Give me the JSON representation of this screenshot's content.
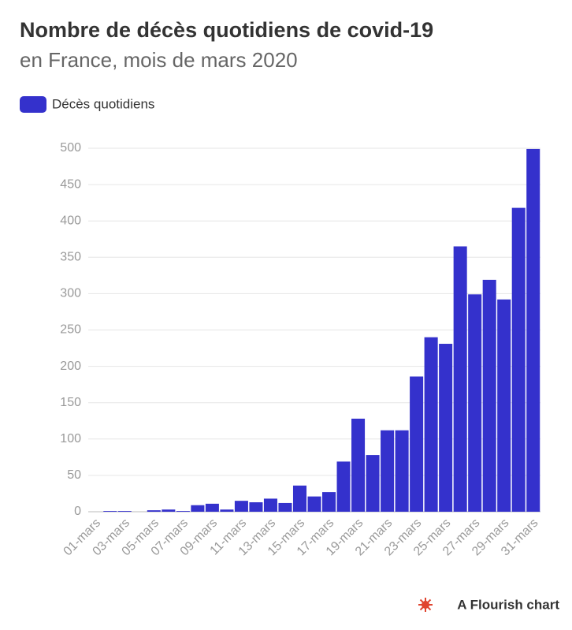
{
  "chart_data": {
    "type": "bar",
    "title": "Nombre de décès quotidiens de covid-19",
    "subtitle": "en France, mois de mars 2020",
    "footer": "A Flourish chart",
    "categories": [
      "01-mars",
      null,
      "03-mars",
      null,
      "05-mars",
      null,
      "07-mars",
      null,
      "09-mars",
      null,
      "11-mars",
      null,
      "13-mars",
      null,
      "15-mars",
      null,
      "17-mars",
      null,
      "19-mars",
      null,
      "21-mars",
      null,
      "23-mars",
      null,
      "25-mars",
      null,
      "27-mars",
      null,
      "29-mars",
      null,
      "31-mars"
    ],
    "series": [
      {
        "name": "Décès quotidiens",
        "color": "#3431cc",
        "values": [
          0,
          1,
          1,
          0,
          2,
          3,
          1,
          9,
          11,
          3,
          15,
          13,
          18,
          12,
          36,
          21,
          27,
          69,
          128,
          78,
          112,
          112,
          186,
          240,
          231,
          365,
          299,
          319,
          292,
          418,
          499
        ]
      }
    ],
    "ylim": [
      0,
      500
    ],
    "yticks": [
      0,
      50,
      100,
      150,
      200,
      250,
      300,
      350,
      400,
      450,
      500
    ],
    "grid": true
  }
}
